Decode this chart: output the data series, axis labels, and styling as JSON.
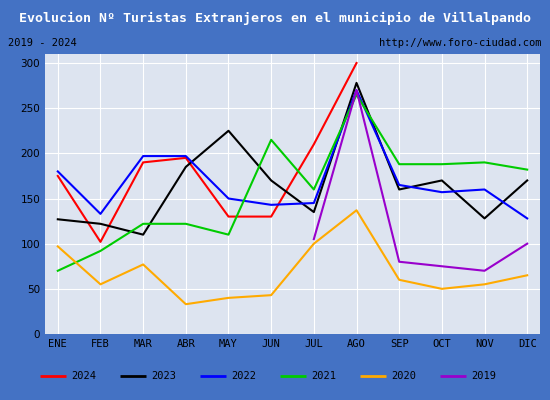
{
  "title": "Evolucion Nº Turistas Extranjeros en el municipio de Villalpando",
  "title_bg": "#4472c4",
  "subtitle_left": "2019 - 2024",
  "subtitle_right": "http://www.foro-ciudad.com",
  "x_labels": [
    "ENE",
    "FEB",
    "MAR",
    "ABR",
    "MAY",
    "JUN",
    "JUL",
    "AGO",
    "SEP",
    "OCT",
    "NOV",
    "DIC"
  ],
  "ylim": [
    0,
    310
  ],
  "yticks": [
    0,
    50,
    100,
    150,
    200,
    250,
    300
  ],
  "series": {
    "2024": {
      "color": "#ff0000",
      "data": [
        175,
        102,
        190,
        195,
        130,
        130,
        210,
        300,
        null,
        null,
        null,
        null
      ]
    },
    "2023": {
      "color": "#000000",
      "data": [
        127,
        122,
        110,
        185,
        225,
        170,
        135,
        278,
        160,
        170,
        128,
        170
      ]
    },
    "2022": {
      "color": "#0000ff",
      "data": [
        180,
        133,
        197,
        197,
        150,
        143,
        145,
        270,
        165,
        157,
        160,
        128
      ]
    },
    "2021": {
      "color": "#00cc00",
      "data": [
        70,
        92,
        122,
        122,
        110,
        215,
        160,
        265,
        188,
        188,
        190,
        182
      ]
    },
    "2020": {
      "color": "#ffaa00",
      "data": [
        97,
        55,
        77,
        33,
        40,
        43,
        100,
        137,
        60,
        50,
        55,
        65
      ]
    },
    "2019": {
      "color": "#9900cc",
      "data": [
        null,
        null,
        null,
        null,
        null,
        null,
        105,
        270,
        80,
        75,
        70,
        100
      ]
    }
  },
  "legend_order": [
    "2024",
    "2023",
    "2022",
    "2021",
    "2020",
    "2019"
  ],
  "border_color": "#4472c4",
  "plot_bg": "#dde4f0",
  "grid_color": "#ffffff",
  "fig_width": 5.5,
  "fig_height": 4.0,
  "dpi": 100
}
